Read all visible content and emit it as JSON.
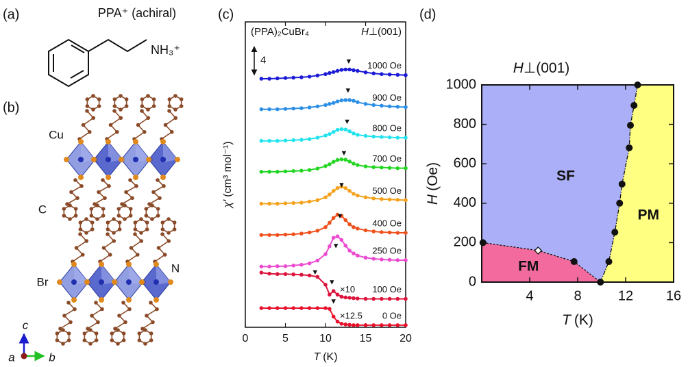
{
  "panel_labels": [
    "(a)",
    "(b)",
    "(c)",
    "(d)"
  ],
  "molecule": {
    "title": "PPA⁺ (achiral)",
    "group": "NH₃⁺"
  },
  "structure": {
    "atoms": [
      "Cu",
      "C",
      "Br",
      "N"
    ],
    "axes": [
      "c",
      "a",
      "b"
    ]
  },
  "chart_data": [
    {
      "type": "line",
      "title": "(PPA)₂CuBr₄",
      "subtitle": {
        "symbol": "H",
        "rest": "⊥(001)"
      },
      "xlabel": {
        "symbol": "T",
        "unit": "(K)"
      },
      "ylabel": {
        "symbol": "χ′",
        "unit": "(cm³ mol⁻¹)"
      },
      "x": [
        2,
        3,
        4,
        5,
        6,
        7,
        8,
        9,
        10,
        10.5,
        11,
        11.5,
        12,
        12.5,
        13,
        13.5,
        14,
        15,
        16,
        17,
        18,
        19,
        20
      ],
      "xlim": [
        0,
        20
      ],
      "xticks": [
        0,
        5,
        10,
        15,
        20
      ],
      "ylim": [
        0,
        43
      ],
      "scale_bar": 4,
      "series": [
        {
          "name": "1000 Oe",
          "color": "#1b1bd8",
          "values": [
            35.0,
            35.0,
            35.05,
            35.1,
            35.15,
            35.2,
            35.3,
            35.45,
            35.65,
            35.8,
            35.95,
            36.1,
            36.25,
            36.3,
            36.3,
            36.2,
            36.1,
            35.9,
            35.75,
            35.65,
            35.6,
            35.55,
            35.5
          ]
        },
        {
          "name": "900 Oe",
          "color": "#2b8fe6",
          "values": [
            30.7,
            30.7,
            30.7,
            30.75,
            30.8,
            30.85,
            30.95,
            31.1,
            31.3,
            31.45,
            31.6,
            31.8,
            31.95,
            32.0,
            32.0,
            31.9,
            31.7,
            31.45,
            31.3,
            31.2,
            31.1,
            31.05,
            31.0
          ]
        },
        {
          "name": "800 Oe",
          "color": "#22e3ef",
          "values": [
            26.25,
            26.25,
            26.25,
            26.3,
            26.35,
            26.4,
            26.5,
            26.7,
            27.0,
            27.2,
            27.5,
            27.8,
            27.9,
            27.85,
            27.6,
            27.3,
            27.1,
            26.95,
            26.85,
            26.8,
            26.75,
            26.7,
            26.7
          ]
        },
        {
          "name": "700 Oe",
          "color": "#22d622",
          "values": [
            21.9,
            21.9,
            21.9,
            21.95,
            22.0,
            22.05,
            22.15,
            22.35,
            22.7,
            22.95,
            23.3,
            23.55,
            23.65,
            23.6,
            23.35,
            23.05,
            22.85,
            22.65,
            22.55,
            22.5,
            22.45,
            22.4,
            22.4
          ]
        },
        {
          "name": "500 Oe",
          "color": "#f5a11c",
          "values": [
            17.4,
            17.4,
            17.4,
            17.45,
            17.5,
            17.55,
            17.7,
            17.9,
            18.3,
            18.7,
            19.2,
            19.6,
            19.8,
            19.6,
            19.2,
            18.8,
            18.55,
            18.3,
            18.15,
            18.05,
            18.0,
            17.95,
            17.9
          ]
        },
        {
          "name": "400 Oe",
          "color": "#ef501b",
          "values": [
            13.0,
            13.0,
            13.0,
            13.05,
            13.1,
            13.2,
            13.35,
            13.6,
            14.1,
            14.7,
            15.4,
            15.85,
            15.7,
            15.1,
            14.5,
            14.1,
            13.9,
            13.65,
            13.5,
            13.4,
            13.35,
            13.3,
            13.3
          ]
        },
        {
          "name": "250 Oe",
          "color": "#ec4bd0",
          "values": [
            8.55,
            8.55,
            8.6,
            8.6,
            8.7,
            8.8,
            9.0,
            9.4,
            10.3,
            11.4,
            12.6,
            12.8,
            12.3,
            11.5,
            10.8,
            10.4,
            10.1,
            9.8,
            9.65,
            9.55,
            9.5,
            9.45,
            9.45
          ]
        },
        {
          "name": "100 Oe",
          "scale_label": "×10",
          "color": "#dc143c",
          "values": [
            7.7,
            7.55,
            7.5,
            7.5,
            7.45,
            7.4,
            7.3,
            7.1,
            6.0,
            4.6,
            5.1,
            4.6,
            4.3,
            4.2,
            4.15,
            4.1,
            4.05,
            4.0,
            4.0,
            4.0,
            4.0,
            4.0,
            4.0
          ]
        },
        {
          "name": "0 Oe",
          "scale_label": "×12.5",
          "color": "#e8102a",
          "values": [
            2.7,
            2.7,
            2.7,
            2.7,
            2.7,
            2.7,
            2.7,
            2.7,
            2.7,
            2.6,
            1.5,
            0.8,
            0.5,
            0.4,
            0.35,
            0.3,
            0.3,
            0.3,
            0.3,
            0.3,
            0.3,
            0.3,
            0.3
          ]
        }
      ],
      "annotations": [
        {
          "text": "▼",
          "x": 12.9,
          "y": 37.4
        },
        {
          "text": "▼",
          "x": 12.8,
          "y": 33.3
        },
        {
          "text": "▼",
          "x": 12.7,
          "y": 28.9
        },
        {
          "text": "▼",
          "x": 12.3,
          "y": 24.5
        },
        {
          "text": "▼",
          "x": 12.0,
          "y": 20.0
        },
        {
          "text": "▼",
          "x": 11.8,
          "y": 15.6
        },
        {
          "text": "▼",
          "x": 11.3,
          "y": 11.4
        },
        {
          "text": "▼",
          "x": 8.7,
          "y": 7.7
        },
        {
          "text": "▼",
          "x": 10.8,
          "y": 6.3
        },
        {
          "text": "▼",
          "x": 11.0,
          "y": 3.6
        }
      ]
    },
    {
      "type": "phase",
      "title": {
        "symbol": "H",
        "rest": "⊥(001)"
      },
      "xlabel": {
        "symbol": "T",
        "unit": "(K)"
      },
      "ylabel": {
        "symbol": "H",
        "unit": "(Oe)"
      },
      "xlim": [
        0,
        16
      ],
      "xticks": [
        4,
        8,
        12,
        16
      ],
      "ylim": [
        0,
        1000
      ],
      "yticks": [
        0,
        200,
        400,
        600,
        800,
        1000
      ],
      "series": [
        {
          "style": "dashed",
          "x": [
            0.1,
            4.7,
            7.7,
            9.9
          ],
          "values": [
            200,
            160,
            104,
            0
          ],
          "markers": [
            "circle",
            "diamond",
            "circle",
            "circle"
          ]
        },
        {
          "style": "dashdot",
          "x": [
            9.9,
            10.6,
            11.1,
            11.5,
            11.7,
            12.3,
            12.4,
            12.7,
            13.0
          ],
          "values": [
            0,
            104,
            253,
            400,
            497,
            681,
            795,
            896,
            1000
          ],
          "markers": [
            "circle",
            "circle",
            "circle",
            "circle",
            "circle",
            "circle",
            "circle",
            "circle",
            "circle"
          ]
        }
      ],
      "regions": [
        {
          "label": "FM",
          "color": "#f36a9e",
          "x": 3.9,
          "y": 76
        },
        {
          "label": "SF",
          "color": "#abaff7",
          "x": 7.0,
          "y": 535
        },
        {
          "label": "PM",
          "color": "#ffff82",
          "x": 13.9,
          "y": 337
        }
      ]
    }
  ]
}
